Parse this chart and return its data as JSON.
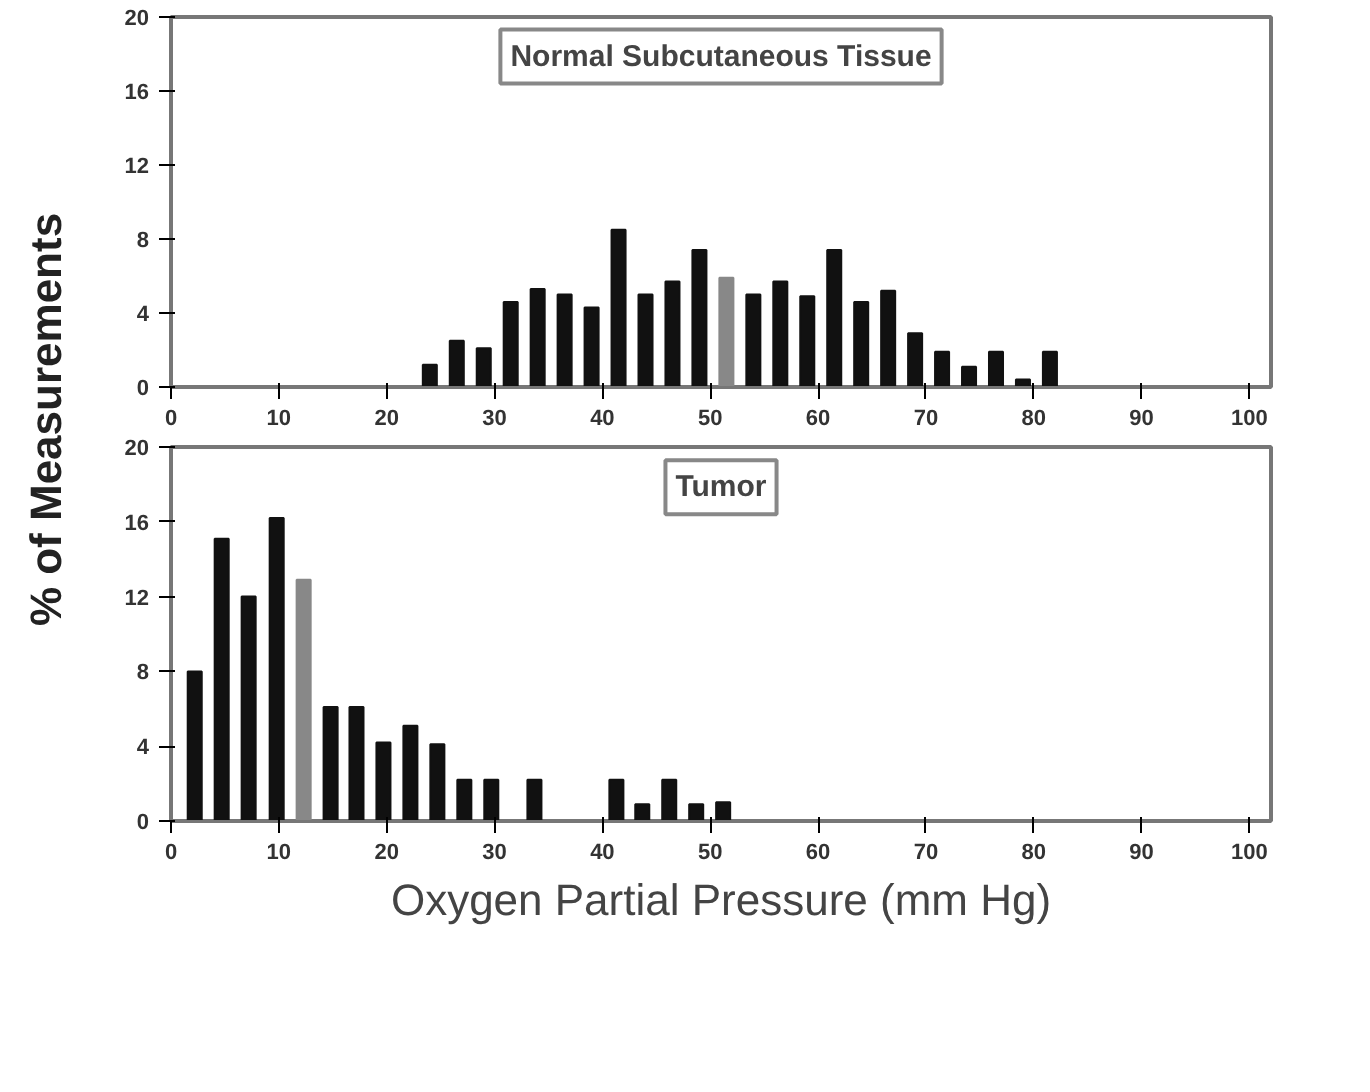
{
  "chart_data": [
    {
      "type": "bar",
      "title": "Normal Subcutaneous Tissue",
      "ylabel": "% of Measurements",
      "x": [
        24,
        26.5,
        29,
        31.5,
        34,
        36.5,
        39,
        41.5,
        44,
        46.5,
        49,
        51.5,
        54,
        56.5,
        59,
        61.5,
        64,
        66.5,
        69,
        71.5,
        74,
        76.5,
        79,
        81.5
      ],
      "values": [
        1.2,
        2.5,
        2.1,
        4.6,
        5.3,
        5.0,
        4.3,
        8.5,
        5.0,
        5.7,
        7.4,
        5.9,
        5.0,
        5.7,
        4.9,
        7.4,
        4.6,
        5.2,
        2.9,
        1.9,
        1.1,
        1.9,
        0.4,
        1.9
      ],
      "colors": [
        "#111111",
        "#111111",
        "#111111",
        "#111111",
        "#111111",
        "#111111",
        "#111111",
        "#111111",
        "#111111",
        "#111111",
        "#111111",
        "#888888",
        "#111111",
        "#111111",
        "#111111",
        "#111111",
        "#111111",
        "#111111",
        "#111111",
        "#111111",
        "#111111",
        "#111111",
        "#111111",
        "#111111"
      ],
      "xlim": [
        0,
        102
      ],
      "xticks": [
        0,
        10,
        20,
        30,
        40,
        50,
        60,
        70,
        80,
        90,
        100
      ],
      "ylim": [
        0,
        20
      ],
      "yticks": [
        0,
        4,
        8,
        12,
        16,
        20
      ],
      "grid": false
    },
    {
      "type": "bar",
      "title": "Tumor",
      "xlabel": "Oxygen Partial Pressure (mm Hg)",
      "x": [
        2.2,
        4.7,
        7.2,
        9.8,
        12.3,
        14.8,
        17.2,
        19.7,
        22.2,
        24.7,
        27.2,
        29.7,
        33.7,
        41.3,
        43.7,
        46.2,
        48.7,
        51.2
      ],
      "values": [
        8,
        15.1,
        12.0,
        16.2,
        12.9,
        6.1,
        6.1,
        4.2,
        5.1,
        4.1,
        2.2,
        2.2,
        2.2,
        2.2,
        0.9,
        2.2,
        0.9,
        1.0
      ],
      "colors": [
        "#111111",
        "#111111",
        "#111111",
        "#111111",
        "#888888",
        "#111111",
        "#111111",
        "#111111",
        "#111111",
        "#111111",
        "#111111",
        "#111111",
        "#111111",
        "#111111",
        "#111111",
        "#111111",
        "#111111",
        "#111111"
      ],
      "xlim": [
        0,
        102
      ],
      "xticks": [
        0,
        10,
        20,
        30,
        40,
        50,
        60,
        70,
        80,
        90,
        100
      ],
      "ylim": [
        0,
        20
      ],
      "yticks": [
        0,
        4,
        8,
        12,
        16,
        20
      ],
      "grid": false
    }
  ]
}
